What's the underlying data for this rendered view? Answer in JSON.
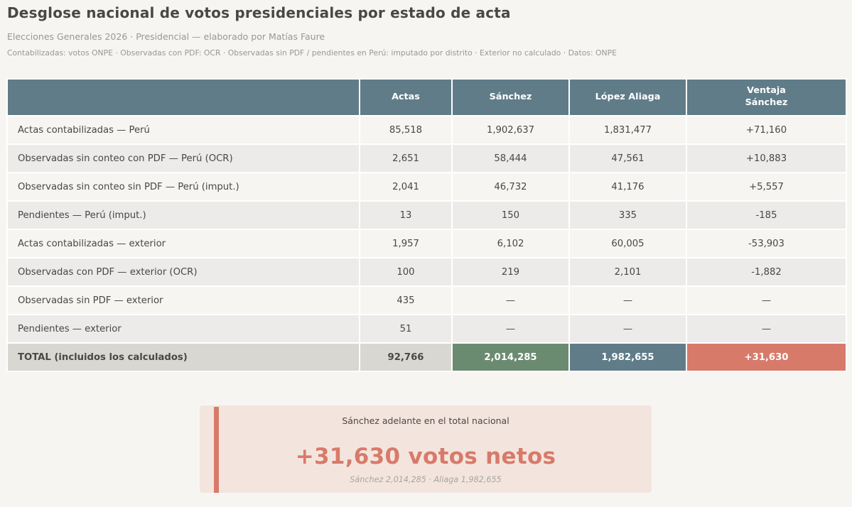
{
  "title": "Desglose nacional de votos presidenciales por estado de acta",
  "subtitle": "Elecciones Generales 2026 · Presidencial — elaborado por Matías Faure",
  "note": "Contabilizadas: votos ONPE · Observadas con PDF: OCR · Observadas sin PDF / pendientes en Perú: imputado por distrito · Exterior no calculado · Datos: ONPE",
  "colors": {
    "header": "#607c89",
    "sanchez": "#6b8b71",
    "aliaga": "#607c89",
    "margin": "#d87a6a",
    "callout_bg": "#f3e5de"
  },
  "chart_data": {
    "type": "table",
    "columns": [
      "",
      "Actas",
      "Sánchez",
      "López Aliaga",
      "Ventaja Sánchez"
    ],
    "rows": [
      [
        "Actas contabilizadas — Perú",
        "85,518",
        "1,902,637",
        "1,831,477",
        "+71,160"
      ],
      [
        "Observadas sin conteo con PDF — Perú (OCR)",
        "2,651",
        "58,444",
        "47,561",
        "+10,883"
      ],
      [
        "Observadas sin conteo sin PDF — Perú (imput.)",
        "2,041",
        "46,732",
        "41,176",
        "+5,557"
      ],
      [
        "Pendientes — Perú (imput.)",
        "13",
        "150",
        "335",
        "-185"
      ],
      [
        "Actas contabilizadas — exterior",
        "1,957",
        "6,102",
        "60,005",
        "-53,903"
      ],
      [
        "Observadas con PDF — exterior (OCR)",
        "100",
        "219",
        "2,101",
        "-1,882"
      ],
      [
        "Observadas sin PDF — exterior",
        "435",
        "—",
        "—",
        "—"
      ],
      [
        "Pendientes — exterior",
        "51",
        "—",
        "—",
        "—"
      ],
      [
        "TOTAL (incluidos los calculados)",
        "92,766",
        "2,014,285",
        "1,982,655",
        "+31,630"
      ]
    ]
  },
  "callout": {
    "heading": "Sánchez adelante en el total nacional",
    "value": "+31,630 votos netos",
    "detail": "Sánchez 2,014,285  ·  Aliaga 1,982,655"
  }
}
